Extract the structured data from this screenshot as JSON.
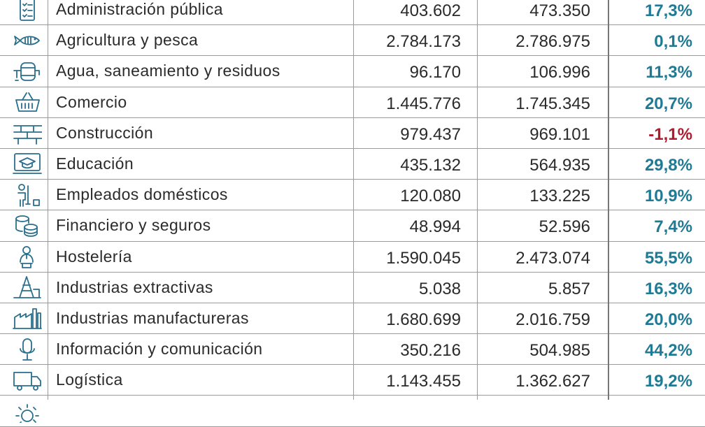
{
  "rows": [
    {
      "name": "Administración pública",
      "v1": "403.602",
      "v2": "473.350",
      "pct": "17,3%",
      "neg": false,
      "icon": "checklist-icon"
    },
    {
      "name": "Agricultura y pesca",
      "v1": "2.784.173",
      "v2": "2.786.975",
      "pct": "0,1%",
      "neg": false,
      "icon": "fish-icon"
    },
    {
      "name": "Agua, saneamiento y residuos",
      "v1": "96.170",
      "v2": "106.996",
      "pct": "11,3%",
      "neg": false,
      "icon": "water-tank-icon"
    },
    {
      "name": "Comercio",
      "v1": "1.445.776",
      "v2": "1.745.345",
      "pct": "20,7%",
      "neg": false,
      "icon": "shopping-basket-icon"
    },
    {
      "name": "Construcción",
      "v1": "979.437",
      "v2": "969.101",
      "pct": "-1,1%",
      "neg": true,
      "icon": "brick-wall-icon"
    },
    {
      "name": "Educación",
      "v1": "435.132",
      "v2": "564.935",
      "pct": "29,8%",
      "neg": false,
      "icon": "graduation-cap-icon"
    },
    {
      "name": "Empleados domésticos",
      "v1": "120.080",
      "v2": "133.225",
      "pct": "10,9%",
      "neg": false,
      "icon": "cleaner-icon"
    },
    {
      "name": "Financiero y seguros",
      "v1": "48.994",
      "v2": "52.596",
      "pct": "7,4%",
      "neg": false,
      "icon": "coins-icon"
    },
    {
      "name": "Hostelería",
      "v1": "1.590.045",
      "v2": "2.473.074",
      "pct": "55,5%",
      "neg": false,
      "icon": "waiter-icon"
    },
    {
      "name": "Industrias extractivas",
      "v1": "5.038",
      "v2": "5.857",
      "pct": "16,3%",
      "neg": false,
      "icon": "oil-derrick-icon"
    },
    {
      "name": "Industrias manufactureras",
      "v1": "1.680.699",
      "v2": "2.016.759",
      "pct": "20,0%",
      "neg": false,
      "icon": "factory-icon"
    },
    {
      "name": "Información y comunicación",
      "v1": "350.216",
      "v2": "504.985",
      "pct": "44,2%",
      "neg": false,
      "icon": "microphone-icon"
    },
    {
      "name": "Logística",
      "v1": "1.143.455",
      "v2": "1.362.627",
      "pct": "19,2%",
      "neg": false,
      "icon": "truck-icon"
    },
    {
      "name": "",
      "v1": "",
      "v2": "",
      "pct": "",
      "neg": false,
      "icon": "gear-icon"
    }
  ],
  "colors": {
    "positive": "#1f7a94",
    "negative": "#b01c2e",
    "icon": "#2a6f8c"
  }
}
